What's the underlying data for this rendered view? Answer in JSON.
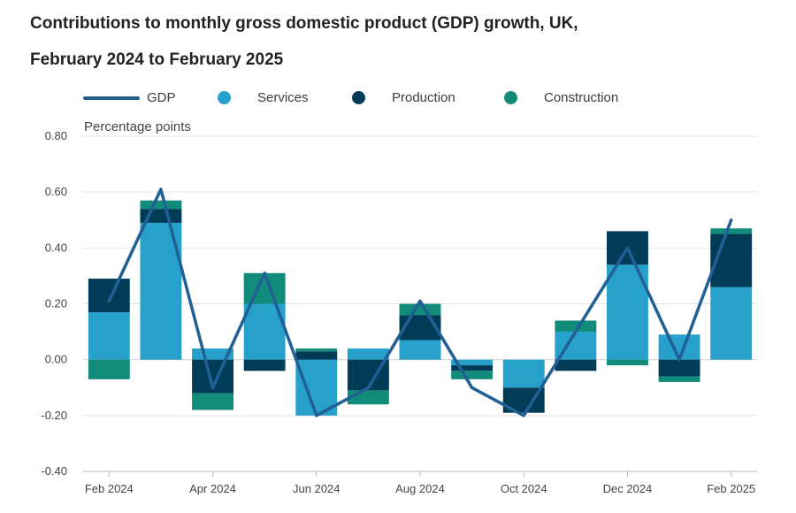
{
  "chart_data": {
    "type": "bar",
    "title_line1": "Contributions to monthly gross domestic product (GDP) growth, UK,",
    "title_line2": "February 2024 to February 2025",
    "ylabel": "Percentage points",
    "xlabel": "",
    "ylim": [
      -0.4,
      0.8
    ],
    "yticks": [
      -0.4,
      -0.2,
      0.0,
      0.2,
      0.4,
      0.6,
      0.8
    ],
    "ytick_labels": [
      "-0.40",
      "-0.20",
      "0.00",
      "0.20",
      "0.40",
      "0.60",
      "0.80"
    ],
    "categories": [
      "Feb 2024",
      "Mar 2024",
      "Apr 2024",
      "May 2024",
      "Jun 2024",
      "Jul 2024",
      "Aug 2024",
      "Sep 2024",
      "Oct 2024",
      "Nov 2024",
      "Dec 2024",
      "Jan 2025",
      "Feb 2025"
    ],
    "x_tick_labels": [
      "Feb 2024",
      "",
      "Apr 2024",
      "",
      "Jun 2024",
      "",
      "Aug 2024",
      "",
      "Oct 2024",
      "",
      "Dec 2024",
      "",
      "Feb 2025"
    ],
    "stacked": true,
    "series": [
      {
        "name": "Services",
        "color": "#27a0cc",
        "values": [
          0.17,
          0.49,
          0.04,
          0.2,
          -0.2,
          0.04,
          0.07,
          -0.02,
          -0.1,
          0.1,
          0.34,
          0.09,
          0.26
        ]
      },
      {
        "name": "Production",
        "color": "#003c57",
        "values": [
          0.12,
          0.05,
          -0.12,
          -0.04,
          0.03,
          -0.11,
          0.09,
          -0.02,
          -0.09,
          -0.04,
          0.12,
          -0.06,
          0.19
        ]
      },
      {
        "name": "Construction",
        "color": "#118c7b",
        "values": [
          -0.07,
          0.03,
          -0.06,
          0.11,
          0.01,
          -0.05,
          0.04,
          -0.03,
          0.0,
          0.04,
          -0.02,
          -0.02,
          0.02
        ]
      }
    ],
    "line_series": {
      "name": "GDP",
      "color": "#206095",
      "values": [
        0.21,
        0.61,
        -0.1,
        0.31,
        -0.2,
        -0.1,
        0.21,
        -0.1,
        -0.2,
        0.1,
        0.4,
        0.0,
        0.5
      ]
    },
    "legend": [
      "GDP",
      "Services",
      "Production",
      "Construction"
    ],
    "grid": true
  }
}
